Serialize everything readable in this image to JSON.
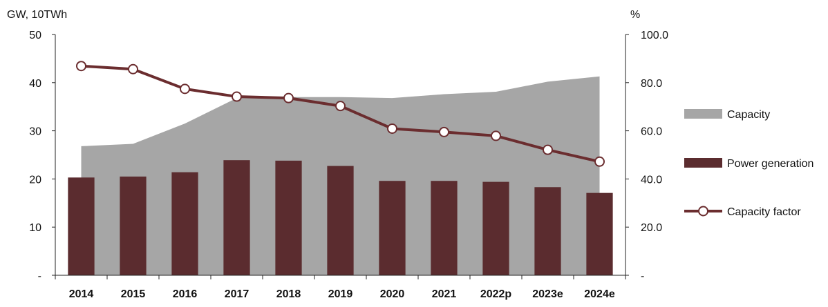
{
  "chart_data": {
    "type": "bar",
    "categories": [
      "2014",
      "2015",
      "2016",
      "2017",
      "2018",
      "2019",
      "2020",
      "2021",
      "2022p",
      "2023e",
      "2024e"
    ],
    "series": [
      {
        "name": "Capacity",
        "type": "area",
        "axis": "left",
        "color": "#a6a6a6",
        "values": [
          26.8,
          27.3,
          31.5,
          36.8,
          37.0,
          37.0,
          36.8,
          37.6,
          38.1,
          40.2,
          41.3
        ]
      },
      {
        "name": "Power generation",
        "type": "bar",
        "axis": "left",
        "color": "#5b2c2f",
        "values": [
          20.3,
          20.5,
          21.4,
          23.9,
          23.8,
          22.7,
          19.6,
          19.6,
          19.4,
          18.3,
          17.1
        ]
      },
      {
        "name": "Capacity factor",
        "type": "line",
        "axis": "right",
        "color": "#6b2d2f",
        "values": [
          86.9,
          85.6,
          77.4,
          74.2,
          73.6,
          70.3,
          60.9,
          59.5,
          57.9,
          52.1,
          47.2
        ]
      }
    ],
    "left_axis": {
      "label": "GW, 10TWh",
      "ylim": [
        0,
        50
      ],
      "ticks": [
        "-",
        "10",
        "20",
        "30",
        "40",
        "50"
      ]
    },
    "right_axis": {
      "label": "%",
      "ylim": [
        0,
        100
      ],
      "ticks": [
        "-",
        "20.0",
        "40.0",
        "60.0",
        "80.0",
        "100.0"
      ]
    },
    "legend": {
      "placement": "right",
      "items": [
        {
          "label": "Capacity",
          "color": "#a6a6a6"
        },
        {
          "label": "Power generation",
          "color": "#5b2c2f"
        },
        {
          "label": "Capacity factor",
          "color": "#6b2d2f"
        }
      ]
    },
    "grid": false
  }
}
